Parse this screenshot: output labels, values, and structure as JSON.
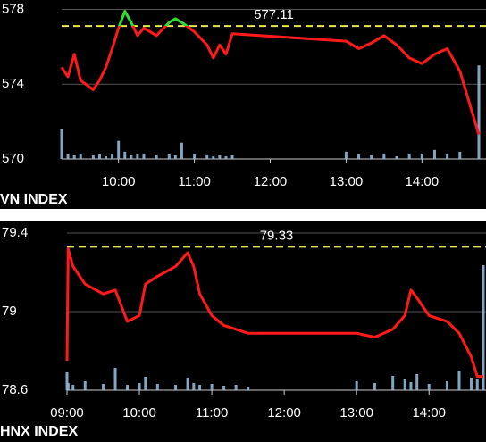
{
  "chart_data": [
    {
      "type": "line",
      "title": "VN INDEX",
      "x": [
        "09:15",
        "09:20",
        "09:25",
        "09:30",
        "09:40",
        "09:45",
        "09:50",
        "09:55",
        "10:00",
        "10:05",
        "10:10",
        "10:15",
        "10:20",
        "10:30",
        "10:40",
        "10:45",
        "10:50",
        "11:00",
        "11:10",
        "11:15",
        "11:20",
        "11:25",
        "11:30",
        "13:00",
        "13:10",
        "13:20",
        "13:30",
        "13:40",
        "13:50",
        "14:00",
        "14:10",
        "14:20",
        "14:30",
        "14:45"
      ],
      "values": [
        574.9,
        574.4,
        575.6,
        574.2,
        573.7,
        574.2,
        574.9,
        575.9,
        577.0,
        577.9,
        577.3,
        576.6,
        577.0,
        576.6,
        577.3,
        577.5,
        577.3,
        576.8,
        576.1,
        575.4,
        576.1,
        575.6,
        576.7,
        576.3,
        575.9,
        576.2,
        576.6,
        576.1,
        575.4,
        575.1,
        575.6,
        575.9,
        574.7,
        571.3
      ],
      "volume": [
        33,
        5,
        4,
        6,
        4,
        5,
        3,
        6,
        20,
        8,
        4,
        5,
        6,
        4,
        5,
        4,
        18,
        5,
        4,
        3,
        4,
        3,
        4,
        8,
        5,
        4,
        6,
        3,
        5,
        6,
        10,
        5,
        8,
        103
      ],
      "color": "#ff1a1a",
      "above_color": "#33dd33",
      "volume_color": "#8fb8d8",
      "reference": 577.11,
      "reference_color": "#e8e84a",
      "xlim": [
        "09:15",
        "14:45"
      ],
      "xticks": [
        "10:00",
        "11:00",
        "12:00",
        "13:00",
        "14:00"
      ],
      "ylim": [
        570,
        578.5
      ],
      "yticks": [
        570,
        574,
        578
      ],
      "y2lim": [
        0,
        175
      ],
      "grid": true
    },
    {
      "type": "line",
      "title": "HNX INDEX",
      "x": [
        "09:00",
        "09:01",
        "09:05",
        "09:15",
        "09:30",
        "09:40",
        "09:50",
        "10:00",
        "10:05",
        "10:15",
        "10:30",
        "10:40",
        "10:45",
        "10:50",
        "11:00",
        "11:10",
        "11:20",
        "11:30",
        "13:00",
        "13:15",
        "13:30",
        "13:40",
        "13:45",
        "13:50",
        "14:00",
        "14:15",
        "14:25",
        "14:35",
        "14:40",
        "14:45"
      ],
      "values": [
        78.75,
        79.32,
        79.23,
        79.14,
        79.09,
        79.11,
        78.95,
        78.98,
        79.14,
        79.18,
        79.23,
        79.3,
        79.23,
        79.09,
        78.98,
        78.93,
        78.91,
        78.89,
        78.89,
        78.87,
        78.91,
        78.98,
        79.11,
        79.07,
        78.98,
        78.95,
        78.89,
        78.77,
        78.67,
        78.67
      ],
      "volume": [
        20,
        8,
        6,
        10,
        7,
        25,
        6,
        8,
        15,
        7,
        6,
        14,
        8,
        6,
        7,
        5,
        6,
        4,
        10,
        8,
        16,
        12,
        9,
        18,
        7,
        10,
        22,
        14,
        12,
        140
      ],
      "color": "#ff1a1a",
      "above_color": "#33dd33",
      "volume_color": "#8fb8d8",
      "reference": 79.33,
      "reference_color": "#e8e84a",
      "xlim": [
        "09:00",
        "14:45"
      ],
      "xticks": [
        "09:00",
        "10:00",
        "11:00",
        "12:00",
        "13:00",
        "14:00"
      ],
      "ylim": [
        78.6,
        79.45
      ],
      "yticks": [
        78.6,
        79,
        79.4
      ],
      "y2lim": [
        0,
        187
      ],
      "grid": true
    }
  ]
}
